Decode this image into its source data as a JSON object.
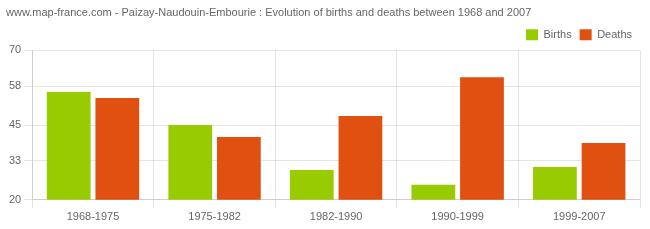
{
  "chart_data": {
    "type": "bar",
    "title": "www.map-france.com - Paizay-Naudouin-Embourie : Evolution of births and deaths between 1968 and 2007",
    "categories": [
      "1968-1975",
      "1975-1982",
      "1982-1990",
      "1990-1999",
      "1999-2007"
    ],
    "series": [
      {
        "name": "Births",
        "color": "#99CC00",
        "values": [
          56,
          45,
          30,
          25,
          31
        ]
      },
      {
        "name": "Deaths",
        "color": "#E05010",
        "values": [
          54,
          41,
          48,
          61,
          39
        ]
      }
    ],
    "ylim": [
      20,
      70
    ],
    "yticks": [
      20,
      33,
      45,
      58,
      70
    ],
    "grid": true,
    "legend": "upper right"
  }
}
